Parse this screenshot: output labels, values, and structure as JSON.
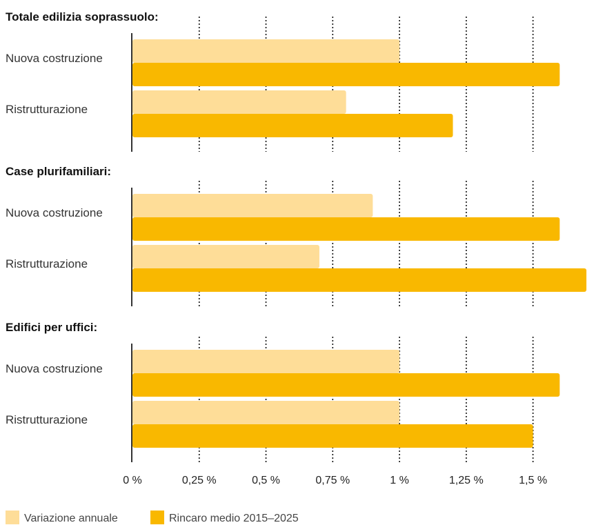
{
  "chart_data": {
    "type": "bar",
    "orientation": "horizontal",
    "xlim": [
      0,
      1.7
    ],
    "x_ticks": [
      0,
      0.25,
      0.5,
      0.75,
      1,
      1.25,
      1.5
    ],
    "x_tick_labels": [
      "0 %",
      "0,25 %",
      "0,5 %",
      "0,75 %",
      "1 %",
      "1,25 %",
      "1,5 %"
    ],
    "grid": "vertical-dotted",
    "legend_position": "bottom-left",
    "series": [
      {
        "name": "Variazione annuale",
        "color": "#FEDD98"
      },
      {
        "name": "Rincaro medio 2015–2025",
        "color": "#F9B800"
      }
    ],
    "groups": [
      {
        "title": "Totale edilizia soprassuolo:",
        "categories": [
          "Nuova costruzione",
          "Ristrutturazione"
        ],
        "values": [
          [
            1.0,
            1.6
          ],
          [
            0.8,
            1.2
          ]
        ]
      },
      {
        "title": "Case plurifamiliari:",
        "categories": [
          "Nuova costruzione",
          "Ristrutturazione"
        ],
        "values": [
          [
            0.9,
            1.6
          ],
          [
            0.7,
            1.7
          ]
        ]
      },
      {
        "title": "Edifici per uffici:",
        "categories": [
          "Nuova costruzione",
          "Ristrutturazione"
        ],
        "values": [
          [
            1.0,
            1.6
          ],
          [
            1.0,
            1.5
          ]
        ]
      }
    ]
  }
}
